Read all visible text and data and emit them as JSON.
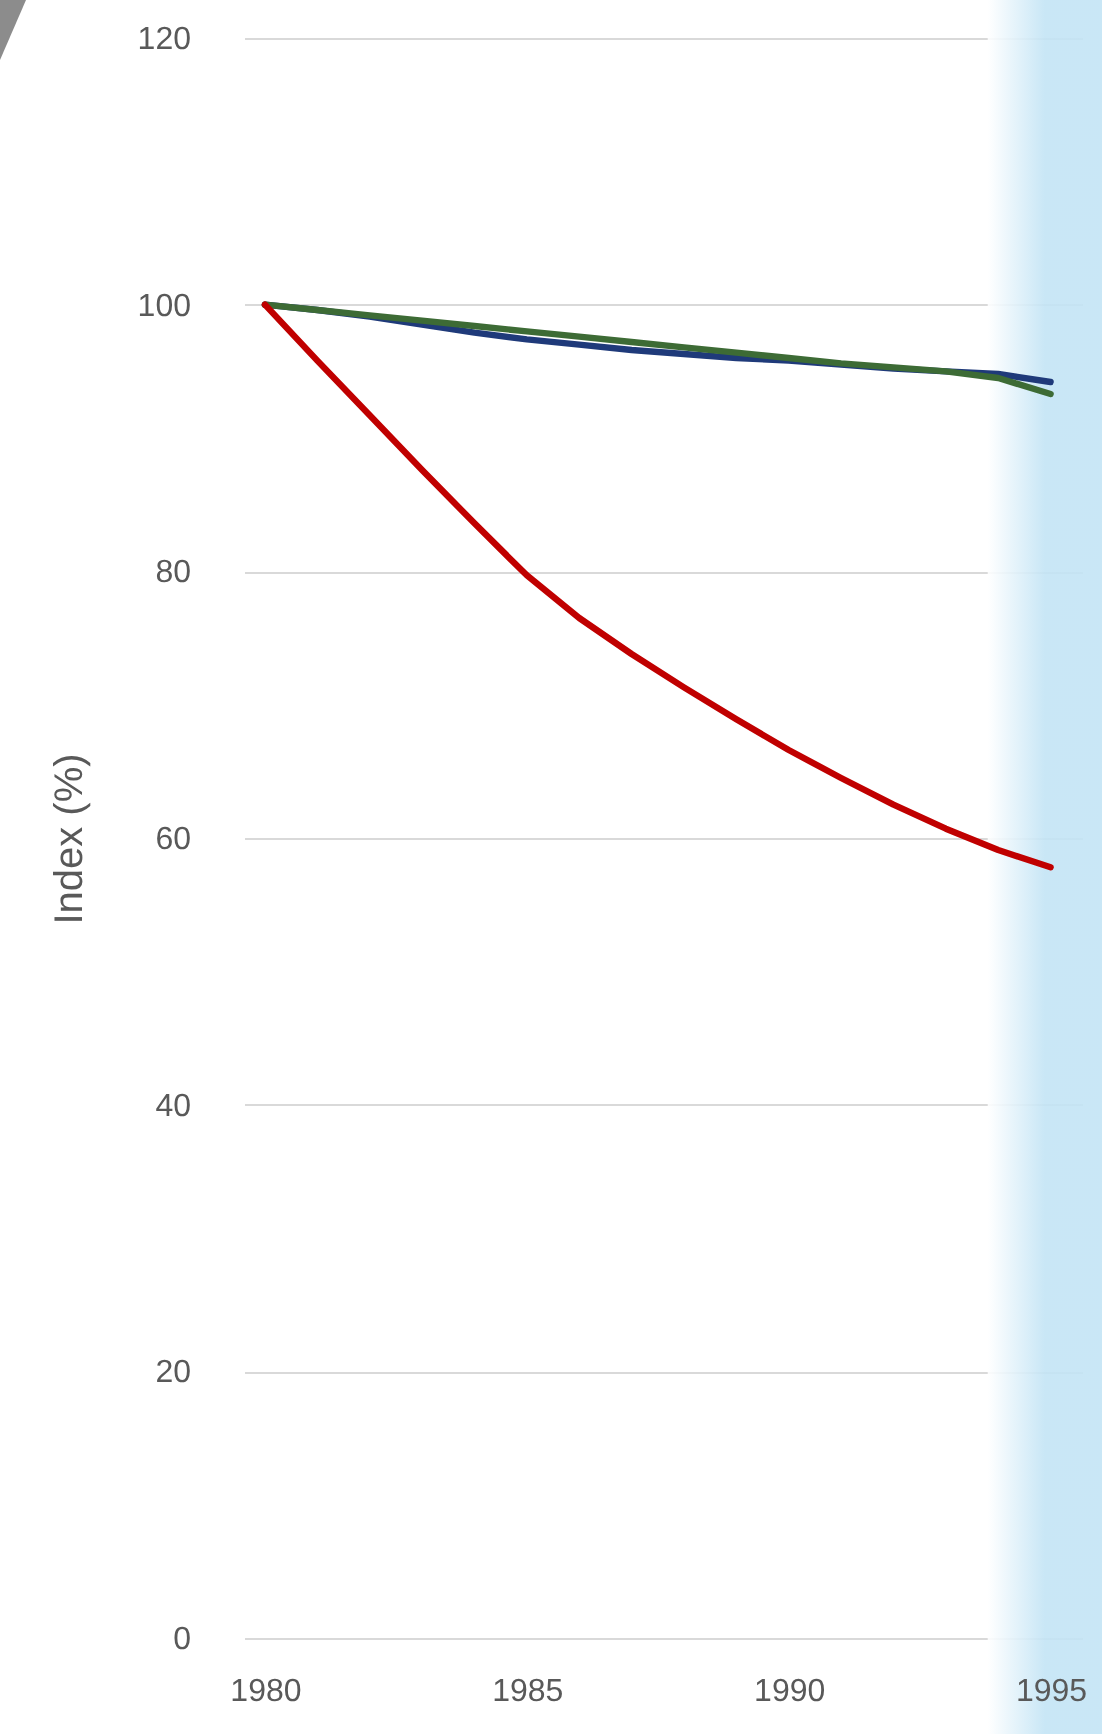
{
  "chart_data": {
    "type": "line",
    "ylabel": "Index (%)",
    "x": [
      1980,
      1981,
      1982,
      1983,
      1984,
      1985,
      1986,
      1987,
      1988,
      1989,
      1990,
      1991,
      1992,
      1993,
      1994,
      1995
    ],
    "series": [
      {
        "color": "#1f3a7a",
        "values": [
          100,
          99.6,
          99.1,
          98.5,
          97.9,
          97.4,
          97.0,
          96.6,
          96.3,
          96.0,
          95.8,
          95.5,
          95.2,
          95.0,
          94.8,
          94.2
        ]
      },
      {
        "color": "#3d6b35",
        "values": [
          100,
          99.6,
          99.2,
          98.8,
          98.4,
          98.0,
          97.6,
          97.2,
          96.8,
          96.4,
          96.0,
          95.6,
          95.3,
          95.0,
          94.5,
          93.3
        ]
      },
      {
        "color": "#c00000",
        "values": [
          100,
          95.8,
          91.7,
          87.6,
          83.6,
          79.7,
          76.5,
          73.8,
          71.3,
          68.9,
          66.6,
          64.5,
          62.5,
          60.7,
          59.1,
          57.8
        ]
      }
    ],
    "xlim": [
      1979.6,
      1995.6
    ],
    "xticks": [
      1980,
      1985,
      1990,
      1995
    ],
    "ylim": [
      0,
      120
    ],
    "yticks": [
      0,
      20,
      40,
      60,
      80,
      100,
      120
    ],
    "grid": "y",
    "bands": [
      {
        "axis": "x",
        "from": 1993.8,
        "to": 1995.6,
        "color": "#c3e4f5"
      }
    ]
  }
}
